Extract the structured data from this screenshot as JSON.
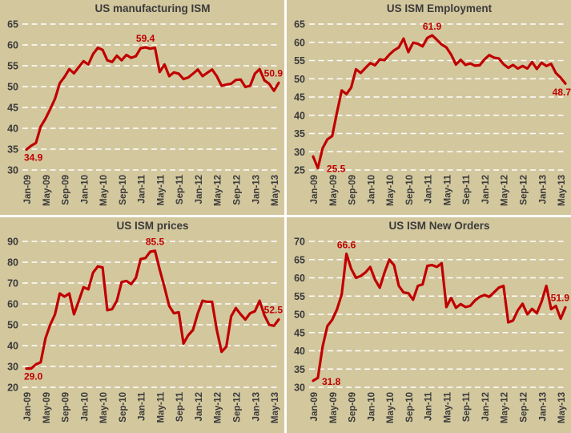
{
  "style": {
    "background": "#d3c79e",
    "divider": "#ffffff",
    "grid_color": "#ffffff",
    "line_color": "#c00000",
    "annotation_color": "#c00000",
    "text_color": "#3a3a3a",
    "title_color": "#3b3b3b"
  },
  "chart_data": [
    {
      "type": "line",
      "title": "US manufacturing ISM",
      "legend_position": "none",
      "grid": "horizontal-dashed",
      "y_ticks": [
        65,
        60,
        55,
        50,
        45,
        40,
        35,
        30
      ],
      "ylim": [
        30,
        65
      ],
      "x_tick_labels": [
        "Jan-09",
        "May-09",
        "Sep-09",
        "Jan-10",
        "May-10",
        "Sep-10",
        "Jan-11",
        "May-11",
        "Sep-11",
        "Jan-12",
        "May-12",
        "Sep-12",
        "Jan-13",
        "May-13"
      ],
      "x_tick_step_months": 4,
      "x_range": "Jan-09 to Jun-13 monthly",
      "values": [
        34.9,
        35.8,
        36.5,
        40.4,
        42.3,
        44.6,
        47.1,
        50.8,
        52.3,
        54.2,
        53.2,
        54.7,
        56.1,
        55.3,
        57.8,
        59.3,
        58.8,
        56.3,
        55.9,
        57.4,
        56.3,
        57.6,
        56.9,
        57.3,
        59.2,
        59.4,
        59.1,
        59.3,
        53.5,
        55.3,
        52.5,
        53.4,
        53.1,
        51.8,
        52.2,
        53.1,
        54.1,
        52.5,
        53.3,
        54.1,
        52.5,
        50.2,
        50.5,
        50.7,
        51.6,
        51.7,
        49.9,
        50.2,
        53.1,
        54.2,
        51.5,
        50.7,
        49.0,
        50.9
      ],
      "annotations": [
        {
          "text": "34.9",
          "point": "min",
          "placement": "below"
        },
        {
          "text": "59.4",
          "point": "max",
          "placement": "above"
        },
        {
          "text": "50.9",
          "point": "last",
          "placement": "above-end"
        }
      ]
    },
    {
      "type": "line",
      "title": "US ISM Employment",
      "legend_position": "none",
      "grid": "horizontal-dashed",
      "y_ticks": [
        65,
        60,
        55,
        50,
        45,
        40,
        35,
        30,
        25
      ],
      "ylim": [
        25,
        65
      ],
      "x_tick_labels": [
        "Jan-09",
        "May-09",
        "Sep-09",
        "Jan-10",
        "May-10",
        "Sep-10",
        "Jan-11",
        "May-11",
        "Sep-11",
        "Jan-12",
        "May-12",
        "Sep-12",
        "Jan-13",
        "May-13"
      ],
      "x_tick_step_months": 4,
      "x_range": "Jan-09 to Jun-13 monthly",
      "values": [
        28.7,
        25.5,
        31.0,
        33.4,
        34.3,
        40.7,
        46.8,
        45.8,
        47.6,
        52.6,
        51.6,
        53.0,
        54.3,
        53.7,
        55.3,
        55.1,
        56.6,
        57.8,
        58.6,
        61.0,
        57.3,
        59.9,
        59.6,
        58.9,
        61.2,
        61.9,
        60.7,
        59.4,
        58.6,
        56.6,
        53.9,
        55.2,
        53.8,
        54.2,
        53.6,
        53.7,
        55.3,
        56.5,
        55.8,
        55.6,
        54.0,
        53.0,
        53.8,
        52.8,
        53.5,
        52.8,
        54.6,
        52.7,
        54.4,
        53.5,
        54.1,
        51.6,
        50.3,
        48.7
      ],
      "annotations": [
        {
          "text": "25.5",
          "point": "min",
          "placement": "right"
        },
        {
          "text": "61.9",
          "point": "max",
          "placement": "above"
        },
        {
          "text": "48.7",
          "point": "last",
          "placement": "below-end"
        }
      ]
    },
    {
      "type": "line",
      "title": "US ISM prices",
      "legend_position": "none",
      "grid": "horizontal-dashed",
      "y_ticks": [
        90,
        80,
        70,
        60,
        50,
        40,
        30,
        20
      ],
      "ylim": [
        20,
        90
      ],
      "x_tick_labels": [
        "Jan-09",
        "May-09",
        "Sep-09",
        "Jan-10",
        "May-10",
        "Sep-10",
        "Jan-11",
        "May-11",
        "Sep-11",
        "Jan-12",
        "May-12",
        "Sep-12",
        "Jan-13",
        "May-13"
      ],
      "x_tick_step_months": 4,
      "x_range": "Jan-09 to Jun-13 monthly",
      "values": [
        29.0,
        29.0,
        31.0,
        32.0,
        43.5,
        50.0,
        55.0,
        65.0,
        63.5,
        65.0,
        55.0,
        61.5,
        68.0,
        67.0,
        75.0,
        78.0,
        77.5,
        57.0,
        57.5,
        61.5,
        70.5,
        71.0,
        69.5,
        72.5,
        81.5,
        82.0,
        85.0,
        85.5,
        76.5,
        68.0,
        59.0,
        55.5,
        56.0,
        41.0,
        45.0,
        47.5,
        55.5,
        61.5,
        61.0,
        61.0,
        47.5,
        37.0,
        39.5,
        54.0,
        58.0,
        55.0,
        52.5,
        55.5,
        56.5,
        61.5,
        54.5,
        50.0,
        49.5,
        52.5
      ],
      "annotations": [
        {
          "text": "29.0",
          "point": "min",
          "placement": "below"
        },
        {
          "text": "85.5",
          "point": "max",
          "placement": "above"
        },
        {
          "text": "52.5",
          "point": "last",
          "placement": "above-end"
        }
      ]
    },
    {
      "type": "line",
      "title": "US ISM New Orders",
      "legend_position": "none",
      "grid": "horizontal-dashed",
      "y_ticks": [
        70,
        65,
        60,
        55,
        50,
        45,
        40,
        35,
        30
      ],
      "ylim": [
        30,
        70
      ],
      "x_tick_labels": [
        "Jan-09",
        "May-09",
        "Sep-09",
        "Jan-10",
        "May-10",
        "Sep-10",
        "Jan-11",
        "May-11",
        "Sep-11",
        "Jan-12",
        "May-12",
        "Sep-12",
        "Jan-13",
        "May-13"
      ],
      "x_tick_step_months": 4,
      "x_range": "Jan-09 to Jun-13 monthly",
      "values": [
        31.8,
        32.6,
        41.2,
        46.8,
        48.5,
        51.3,
        55.5,
        66.6,
        62.5,
        60.0,
        60.5,
        61.5,
        63.0,
        59.5,
        57.3,
        61.5,
        65.0,
        63.5,
        57.8,
        56.0,
        55.8,
        54.0,
        57.8,
        58.2,
        63.3,
        63.5,
        63.0,
        64.0,
        52.0,
        54.5,
        51.8,
        52.8,
        52.0,
        52.3,
        53.8,
        54.8,
        55.3,
        54.8,
        56.0,
        57.3,
        57.8,
        47.8,
        48.3,
        51.1,
        52.9,
        50.0,
        51.5,
        50.3,
        53.5,
        57.8,
        51.4,
        52.3,
        48.8,
        51.9
      ],
      "annotations": [
        {
          "text": "31.8",
          "point": "min",
          "placement": "right"
        },
        {
          "text": "66.6",
          "point": "max",
          "placement": "above"
        },
        {
          "text": "51.9",
          "point": "last",
          "placement": "above-end"
        }
      ]
    }
  ]
}
